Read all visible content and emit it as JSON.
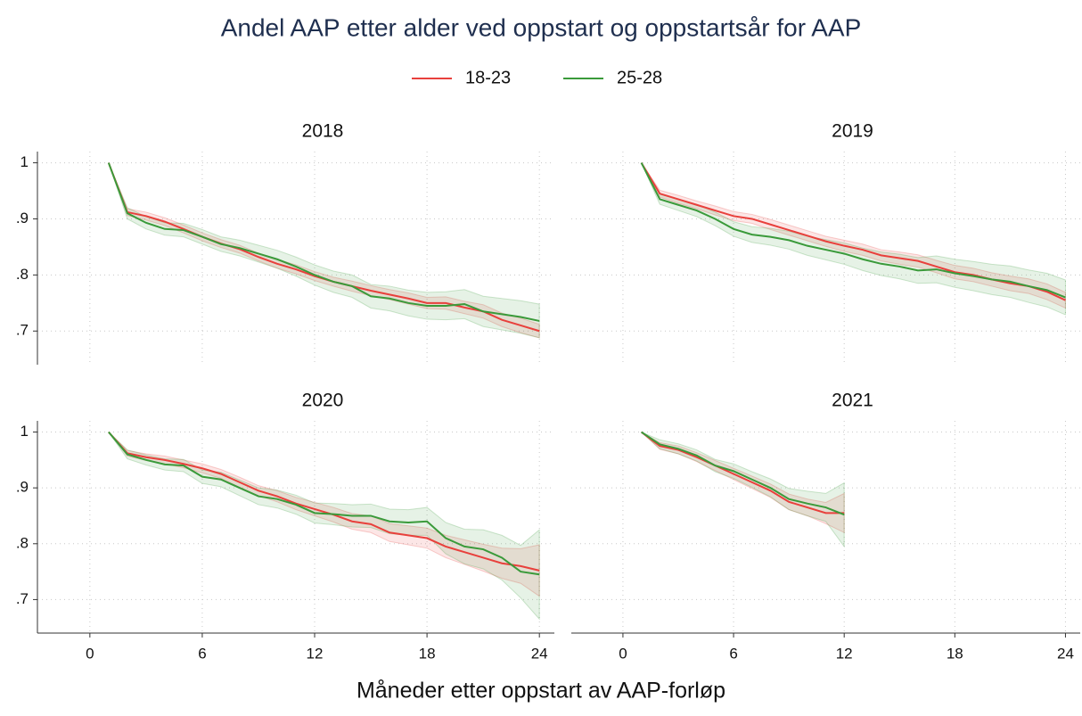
{
  "title": "Andel AAP etter alder ved oppstart og oppstartsår for AAP",
  "xlabel": "Måneder etter oppstart av AAP-forløp",
  "chart_data": [
    {
      "type": "line",
      "title": "2018",
      "x": [
        1,
        2,
        3,
        4,
        5,
        6,
        7,
        8,
        9,
        10,
        11,
        12,
        13,
        14,
        15,
        16,
        17,
        18,
        19,
        20,
        21,
        22,
        23,
        24
      ],
      "xlim": [
        -2.8,
        24.8
      ],
      "xticks": [
        0,
        6,
        12,
        18,
        24
      ],
      "ylim": [
        0.64,
        1.02
      ],
      "yticks": [
        {
          "value": 1,
          "label": "1"
        },
        {
          "value": 0.9,
          "label": ".9"
        },
        {
          "value": 0.8,
          "label": ".8"
        },
        {
          "value": 0.7,
          "label": ".7"
        }
      ],
      "grid": true,
      "series": [
        {
          "name": "18-23",
          "color": "#e8403c",
          "values": [
            1,
            0.912,
            0.905,
            0.895,
            0.882,
            0.868,
            0.856,
            0.846,
            0.832,
            0.82,
            0.81,
            0.798,
            0.788,
            0.78,
            0.772,
            0.765,
            0.758,
            0.75,
            0.75,
            0.742,
            0.735,
            0.72,
            0.71,
            0.7
          ],
          "lower": [
            1,
            0.906,
            0.898,
            0.888,
            0.875,
            0.861,
            0.849,
            0.839,
            0.825,
            0.812,
            0.802,
            0.79,
            0.78,
            0.771,
            0.763,
            0.756,
            0.748,
            0.74,
            0.739,
            0.731,
            0.723,
            0.708,
            0.697,
            0.688
          ],
          "upper": [
            1,
            0.918,
            0.912,
            0.902,
            0.889,
            0.875,
            0.863,
            0.853,
            0.839,
            0.828,
            0.818,
            0.806,
            0.796,
            0.789,
            0.781,
            0.774,
            0.768,
            0.76,
            0.761,
            0.753,
            0.747,
            0.732,
            0.723,
            0.712
          ]
        },
        {
          "name": "25-28",
          "color": "#3a9a3a",
          "values": [
            1,
            0.91,
            0.893,
            0.882,
            0.88,
            0.868,
            0.855,
            0.848,
            0.838,
            0.828,
            0.815,
            0.8,
            0.788,
            0.78,
            0.762,
            0.758,
            0.75,
            0.745,
            0.745,
            0.748,
            0.735,
            0.73,
            0.725,
            0.718
          ],
          "lower": [
            1,
            0.9,
            0.882,
            0.871,
            0.868,
            0.855,
            0.842,
            0.834,
            0.823,
            0.812,
            0.798,
            0.782,
            0.769,
            0.76,
            0.741,
            0.736,
            0.727,
            0.721,
            0.72,
            0.722,
            0.708,
            0.702,
            0.696,
            0.688
          ],
          "upper": [
            1,
            0.92,
            0.904,
            0.893,
            0.892,
            0.881,
            0.868,
            0.862,
            0.853,
            0.844,
            0.832,
            0.818,
            0.807,
            0.8,
            0.783,
            0.78,
            0.773,
            0.769,
            0.77,
            0.774,
            0.762,
            0.758,
            0.754,
            0.748
          ]
        }
      ]
    },
    {
      "type": "line",
      "title": "2019",
      "x": [
        1,
        2,
        3,
        4,
        5,
        6,
        7,
        8,
        9,
        10,
        11,
        12,
        13,
        14,
        15,
        16,
        17,
        18,
        19,
        20,
        21,
        22,
        23,
        24
      ],
      "xlim": [
        -2.8,
        24.8
      ],
      "xticks": [
        0,
        6,
        12,
        18,
        24
      ],
      "ylim": [
        0.64,
        1.02
      ],
      "yticks": [
        {
          "value": 1,
          "label": "1"
        },
        {
          "value": 0.9,
          "label": ".9"
        },
        {
          "value": 0.8,
          "label": ".8"
        },
        {
          "value": 0.7,
          "label": ".7"
        }
      ],
      "grid": true,
      "series": [
        {
          "name": "18-23",
          "color": "#e8403c",
          "values": [
            1,
            0.945,
            0.935,
            0.925,
            0.915,
            0.905,
            0.9,
            0.89,
            0.88,
            0.87,
            0.86,
            0.852,
            0.845,
            0.835,
            0.83,
            0.825,
            0.815,
            0.805,
            0.8,
            0.792,
            0.785,
            0.78,
            0.77,
            0.755
          ],
          "lower": [
            1,
            0.939,
            0.928,
            0.918,
            0.907,
            0.897,
            0.892,
            0.881,
            0.871,
            0.861,
            0.851,
            0.842,
            0.835,
            0.825,
            0.819,
            0.814,
            0.804,
            0.793,
            0.788,
            0.78,
            0.772,
            0.767,
            0.756,
            0.741
          ],
          "upper": [
            1,
            0.951,
            0.942,
            0.932,
            0.923,
            0.913,
            0.908,
            0.899,
            0.889,
            0.879,
            0.869,
            0.862,
            0.855,
            0.845,
            0.841,
            0.836,
            0.826,
            0.817,
            0.812,
            0.804,
            0.798,
            0.793,
            0.784,
            0.769
          ]
        },
        {
          "name": "25-28",
          "color": "#3a9a3a",
          "values": [
            1,
            0.935,
            0.925,
            0.915,
            0.9,
            0.882,
            0.872,
            0.868,
            0.862,
            0.852,
            0.845,
            0.838,
            0.828,
            0.82,
            0.815,
            0.808,
            0.81,
            0.803,
            0.798,
            0.792,
            0.788,
            0.78,
            0.773,
            0.76
          ],
          "lower": [
            1,
            0.926,
            0.915,
            0.904,
            0.888,
            0.869,
            0.858,
            0.853,
            0.846,
            0.835,
            0.827,
            0.819,
            0.808,
            0.799,
            0.793,
            0.785,
            0.786,
            0.778,
            0.772,
            0.765,
            0.76,
            0.751,
            0.743,
            0.729
          ],
          "upper": [
            1,
            0.944,
            0.935,
            0.926,
            0.912,
            0.895,
            0.886,
            0.883,
            0.878,
            0.869,
            0.863,
            0.857,
            0.848,
            0.841,
            0.837,
            0.831,
            0.834,
            0.828,
            0.824,
            0.819,
            0.816,
            0.809,
            0.803,
            0.791
          ]
        }
      ]
    },
    {
      "type": "line",
      "title": "2020",
      "x": [
        1,
        2,
        3,
        4,
        5,
        6,
        7,
        8,
        9,
        10,
        11,
        12,
        13,
        14,
        15,
        16,
        17,
        18,
        19,
        20,
        21,
        22,
        23,
        24
      ],
      "xlim": [
        -2.8,
        24.8
      ],
      "xticks": [
        0,
        6,
        12,
        18,
        24
      ],
      "ylim": [
        0.64,
        1.02
      ],
      "yticks": [
        {
          "value": 1,
          "label": "1"
        },
        {
          "value": 0.9,
          "label": ".9"
        },
        {
          "value": 0.8,
          "label": ".8"
        },
        {
          "value": 0.7,
          "label": ".7"
        }
      ],
      "grid": true,
      "series": [
        {
          "name": "18-23",
          "color": "#e8403c",
          "values": [
            1,
            0.962,
            0.955,
            0.95,
            0.943,
            0.935,
            0.925,
            0.91,
            0.895,
            0.885,
            0.872,
            0.862,
            0.852,
            0.84,
            0.835,
            0.82,
            0.815,
            0.81,
            0.795,
            0.785,
            0.775,
            0.765,
            0.76,
            0.752
          ],
          "lower": [
            1,
            0.957,
            0.949,
            0.943,
            0.936,
            0.927,
            0.917,
            0.901,
            0.886,
            0.875,
            0.861,
            0.85,
            0.839,
            0.826,
            0.82,
            0.804,
            0.798,
            0.792,
            0.775,
            0.763,
            0.751,
            0.738,
            0.729,
            0.706
          ],
          "upper": [
            1,
            0.967,
            0.961,
            0.957,
            0.95,
            0.943,
            0.933,
            0.919,
            0.904,
            0.895,
            0.883,
            0.874,
            0.865,
            0.854,
            0.85,
            0.836,
            0.832,
            0.828,
            0.815,
            0.807,
            0.799,
            0.792,
            0.791,
            0.798
          ]
        },
        {
          "name": "25-28",
          "color": "#3a9a3a",
          "values": [
            1,
            0.96,
            0.95,
            0.942,
            0.94,
            0.92,
            0.915,
            0.9,
            0.885,
            0.88,
            0.87,
            0.855,
            0.853,
            0.85,
            0.85,
            0.84,
            0.838,
            0.84,
            0.81,
            0.795,
            0.79,
            0.775,
            0.75,
            0.745
          ],
          "lower": [
            1,
            0.952,
            0.941,
            0.932,
            0.929,
            0.908,
            0.902,
            0.886,
            0.87,
            0.864,
            0.853,
            0.837,
            0.834,
            0.83,
            0.829,
            0.818,
            0.815,
            0.815,
            0.782,
            0.764,
            0.755,
            0.735,
            0.703,
            0.665
          ],
          "upper": [
            1,
            0.968,
            0.959,
            0.952,
            0.951,
            0.932,
            0.928,
            0.914,
            0.9,
            0.896,
            0.887,
            0.873,
            0.872,
            0.87,
            0.871,
            0.862,
            0.861,
            0.865,
            0.838,
            0.826,
            0.825,
            0.815,
            0.797,
            0.825
          ]
        }
      ]
    },
    {
      "type": "line",
      "title": "2021",
      "x": [
        1,
        2,
        3,
        4,
        5,
        6,
        7,
        8,
        9,
        10,
        11,
        12
      ],
      "xlim": [
        -2.8,
        24.8
      ],
      "xticks": [
        0,
        6,
        12,
        18,
        24
      ],
      "ylim": [
        0.64,
        1.02
      ],
      "yticks": [
        {
          "value": 1,
          "label": "1"
        },
        {
          "value": 0.9,
          "label": ".9"
        },
        {
          "value": 0.8,
          "label": ".8"
        },
        {
          "value": 0.7,
          "label": ".7"
        }
      ],
      "grid": true,
      "series": [
        {
          "name": "18-23",
          "color": "#e8403c",
          "values": [
            1,
            0.975,
            0.968,
            0.955,
            0.94,
            0.925,
            0.91,
            0.895,
            0.875,
            0.865,
            0.855,
            0.855
          ],
          "lower": [
            1,
            0.969,
            0.961,
            0.947,
            0.931,
            0.915,
            0.899,
            0.883,
            0.861,
            0.85,
            0.836,
            0.82
          ],
          "upper": [
            1,
            0.981,
            0.975,
            0.963,
            0.949,
            0.935,
            0.921,
            0.907,
            0.889,
            0.88,
            0.874,
            0.89
          ]
        },
        {
          "name": "25-28",
          "color": "#3a9a3a",
          "values": [
            1,
            0.978,
            0.97,
            0.958,
            0.94,
            0.93,
            0.915,
            0.9,
            0.88,
            0.872,
            0.865,
            0.852
          ],
          "lower": [
            1,
            0.97,
            0.961,
            0.948,
            0.929,
            0.917,
            0.901,
            0.884,
            0.861,
            0.85,
            0.84,
            0.795
          ],
          "upper": [
            1,
            0.986,
            0.979,
            0.968,
            0.951,
            0.943,
            0.929,
            0.916,
            0.899,
            0.894,
            0.89,
            0.909
          ]
        }
      ]
    }
  ]
}
